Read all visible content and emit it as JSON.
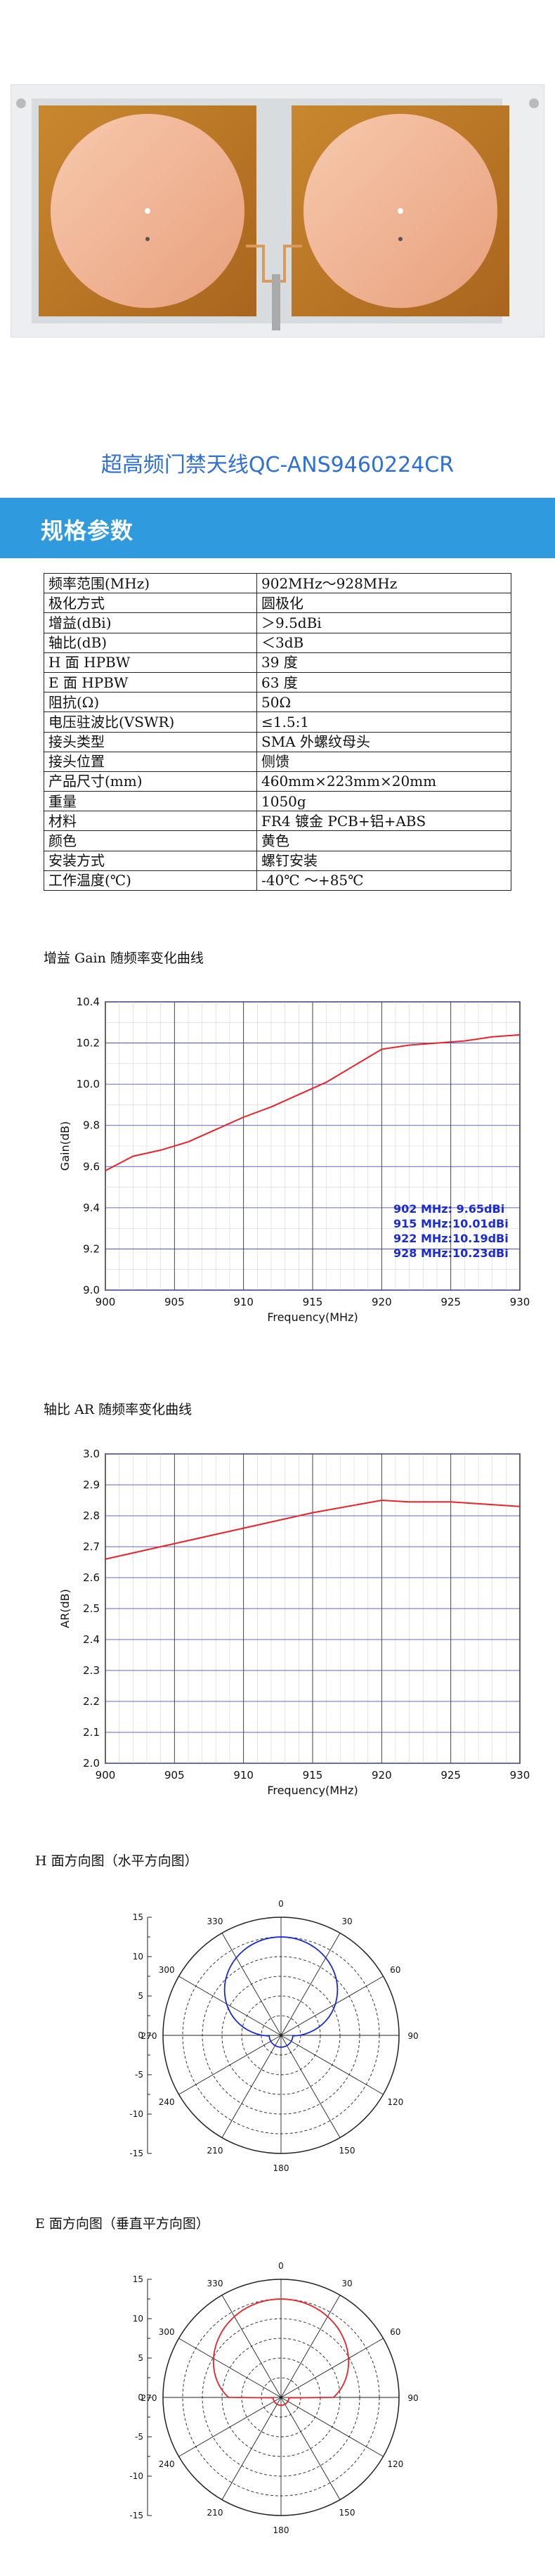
{
  "title": "超高频门禁天线QC-ANS9460224CR",
  "banner": "规格参数",
  "specs": [
    {
      "k": "频率范围(MHz)",
      "v": "902MHz～928MHz"
    },
    {
      "k": "极化方式",
      "v": "圆极化"
    },
    {
      "k": "增益(dBi)",
      "v": "＞9.5dBi"
    },
    {
      "k": "轴比(dB)",
      "v": "＜3dB"
    },
    {
      "k": "H 面 HPBW",
      "v": "39 度"
    },
    {
      "k": "E 面 HPBW",
      "v": "63 度"
    },
    {
      "k": "阻抗(Ω)",
      "v": "50Ω"
    },
    {
      "k": "电压驻波比(VSWR)",
      "v": "≤1.5:1"
    },
    {
      "k": "接头类型",
      "v": "SMA 外螺纹母头"
    },
    {
      "k": "接头位置",
      "v": "侧馈"
    },
    {
      "k": "产品尺寸(mm)",
      "v": "460mm×223mm×20mm"
    },
    {
      "k": "重量",
      "v": "1050g"
    },
    {
      "k": "材料",
      "v": "FR4 镀金 PCB+铝+ABS"
    },
    {
      "k": "颜色",
      "v": "黄色"
    },
    {
      "k": "安装方式",
      "v": "螺钉安装"
    },
    {
      "k": "工作温度(℃)",
      "v": "-40℃ ～+85℃"
    }
  ],
  "sections": {
    "gain": "增益 Gain 随频率变化曲线",
    "ar": "轴比 AR 随频率变化曲线",
    "h": "H 面方向图（水平方向图）",
    "e": "E 面方向图（垂直平方向图）"
  },
  "chart_data": [
    {
      "type": "line",
      "xlabel": "Frequency(MHz)",
      "ylabel": "Gain(dB)",
      "xlim": [
        900,
        930
      ],
      "ylim": [
        9.0,
        10.4
      ],
      "xticks": [
        900,
        905,
        910,
        915,
        920,
        925,
        930
      ],
      "yticks": [
        9.0,
        9.2,
        9.4,
        9.6,
        9.8,
        10.0,
        10.2,
        10.4
      ],
      "x": [
        900,
        902,
        904,
        906,
        908,
        910,
        912,
        914,
        916,
        918,
        920,
        922,
        924,
        926,
        928,
        930
      ],
      "y": [
        9.58,
        9.65,
        9.68,
        9.72,
        9.78,
        9.84,
        9.89,
        9.95,
        10.01,
        10.09,
        10.17,
        10.19,
        10.2,
        10.21,
        10.23,
        10.24
      ],
      "annotations": [
        "902 MHz:  9.65dBi",
        "915 MHz:10.01dBi",
        "922 MHz:10.19dBi",
        "928 MHz:10.23dBi"
      ],
      "color": "#e8232a",
      "annotation_color": "#1a2bd6",
      "grid": true
    },
    {
      "type": "line",
      "xlabel": "Frequency(MHz)",
      "ylabel": "AR(dB)",
      "xlim": [
        900,
        930
      ],
      "ylim": [
        2.0,
        3.0
      ],
      "xticks": [
        900,
        905,
        910,
        915,
        920,
        925,
        930
      ],
      "yticks": [
        2.0,
        2.1,
        2.2,
        2.3,
        2.4,
        2.5,
        2.6,
        2.7,
        2.8,
        2.9,
        3.0
      ],
      "x": [
        900,
        905,
        910,
        915,
        920,
        922,
        925,
        930
      ],
      "y": [
        2.66,
        2.71,
        2.76,
        2.81,
        2.85,
        2.845,
        2.845,
        2.83
      ],
      "color": "#e8232a",
      "grid": true
    },
    {
      "type": "polar",
      "angle_labels": [
        "0",
        "30",
        "60",
        "90",
        "120",
        "150",
        "180",
        "210",
        "240",
        "270",
        "300",
        "330"
      ],
      "radial_labels": [
        "15",
        "10",
        "5",
        "0",
        "-5",
        "-10",
        "-15"
      ],
      "rlim": [
        -15,
        15
      ],
      "color": "#1a2bd6"
    },
    {
      "type": "polar",
      "angle_labels": [
        "0",
        "30",
        "60",
        "90",
        "120",
        "150",
        "180",
        "210",
        "240",
        "270",
        "300",
        "330"
      ],
      "radial_labels": [
        "15",
        "10",
        "5",
        "0",
        "-5",
        "-10",
        "-15"
      ],
      "rlim": [
        -15,
        15
      ],
      "color": "#e8232a"
    }
  ]
}
